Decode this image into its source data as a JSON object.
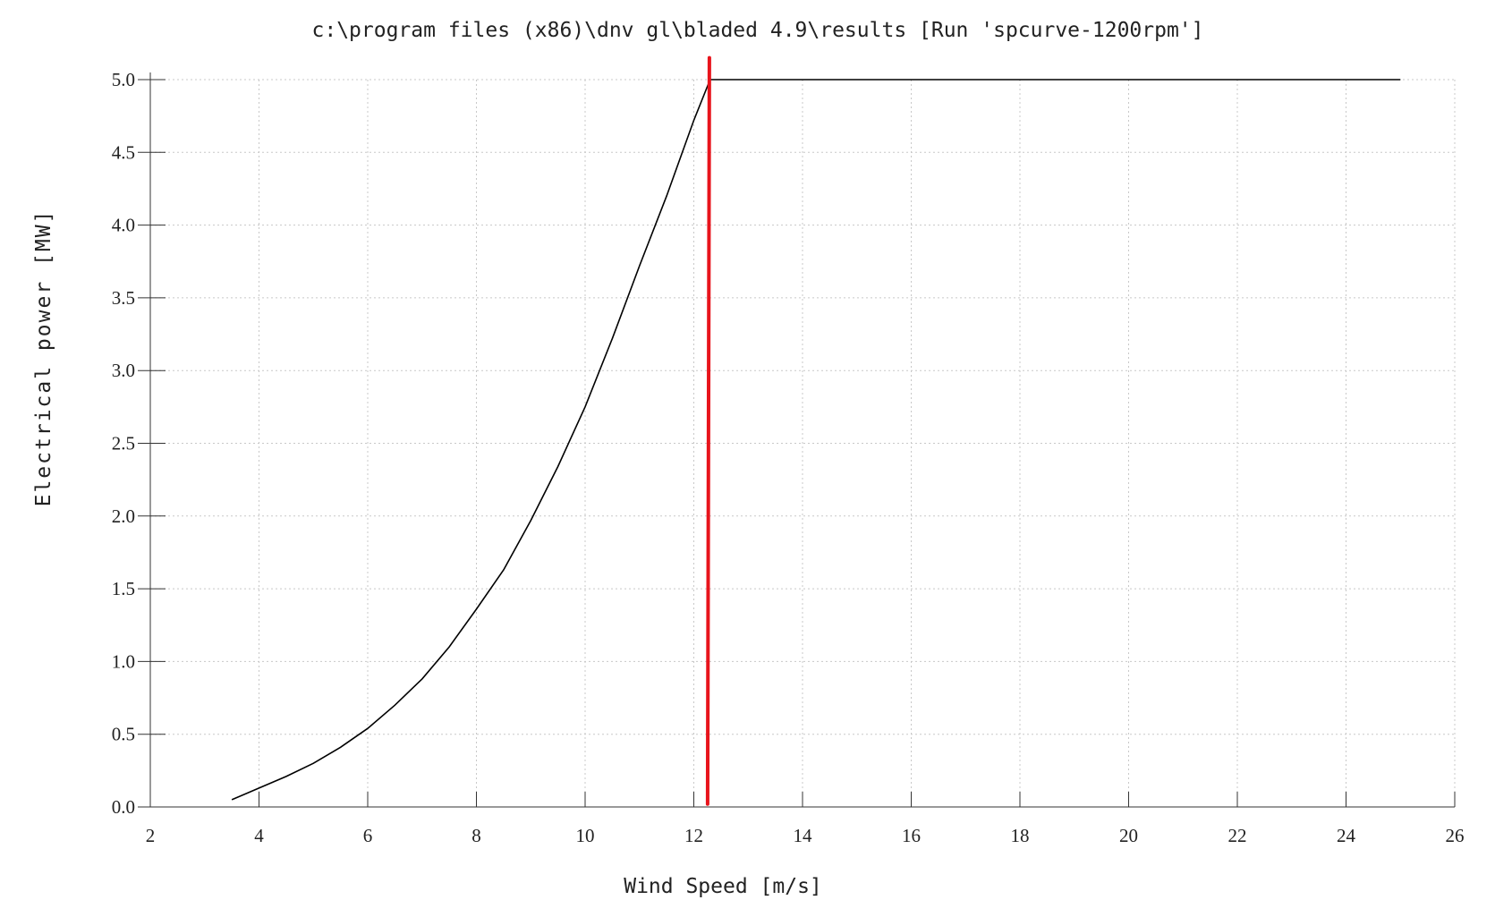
{
  "chart_data": {
    "type": "line",
    "title": "c:\\program files (x86)\\dnv gl\\bladed 4.9\\results [Run 'spcurve-1200rpm']",
    "xlabel": "Wind Speed [m/s]",
    "ylabel": "Electrical power  [MW]",
    "xlim": [
      2,
      26
    ],
    "ylim": [
      0,
      5
    ],
    "xticks": [
      "2",
      "4",
      "6",
      "8",
      "10",
      "12",
      "14",
      "16",
      "18",
      "20",
      "22",
      "24",
      "26"
    ],
    "yticks": [
      "0.0",
      "0.5",
      "1.0",
      "1.5",
      "2.0",
      "2.5",
      "3.0",
      "3.5",
      "4.0",
      "4.5",
      "5.0"
    ],
    "grid": true,
    "series": [
      {
        "color": "#000000",
        "x": [
          3.5,
          4,
          4.5,
          5,
          5.5,
          6,
          6.5,
          7,
          7.5,
          8,
          8.5,
          9,
          9.5,
          10,
          10.5,
          11,
          11.5,
          12,
          12.3,
          13,
          15,
          20,
          25
        ],
        "y": [
          0.05,
          0.13,
          0.21,
          0.3,
          0.41,
          0.54,
          0.7,
          0.88,
          1.1,
          1.36,
          1.63,
          1.97,
          2.34,
          2.75,
          3.22,
          3.72,
          4.2,
          4.72,
          5.0,
          5.0,
          5.0,
          5.0,
          5.0
        ]
      }
    ],
    "annotations": [
      {
        "type": "vertical-line",
        "x": 12.27,
        "y_range": [
          0.02,
          5.15
        ],
        "color": "#e8141c"
      }
    ]
  }
}
